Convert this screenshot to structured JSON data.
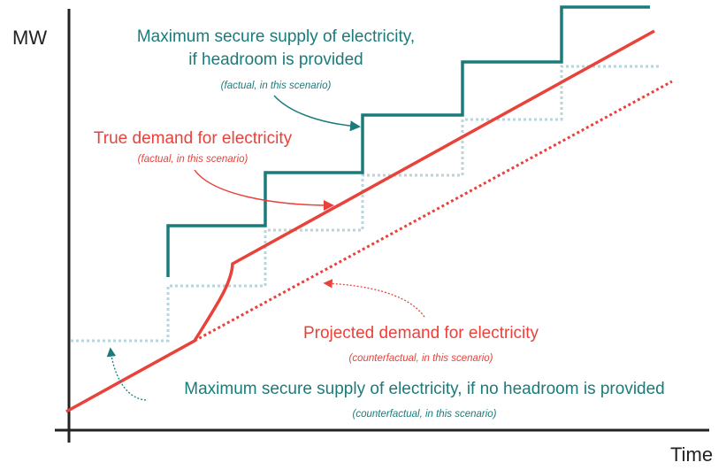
{
  "axes": {
    "y_label": "MW",
    "x_label": "Time"
  },
  "annotations": [
    {
      "title": "Maximum secure supply of electricity,",
      "title_line2": "if headroom is provided",
      "note": "(factual, in this scenario)"
    },
    {
      "title": "True demand for electricity",
      "note": "(factual, in this scenario)"
    },
    {
      "title": "Projected demand for electricity",
      "note": "(counterfactual, in this scenario)"
    },
    {
      "title": "Maximum secure supply of electricity, if no headroom is provided",
      "note": "(counterfactual, in this scenario)"
    }
  ]
}
